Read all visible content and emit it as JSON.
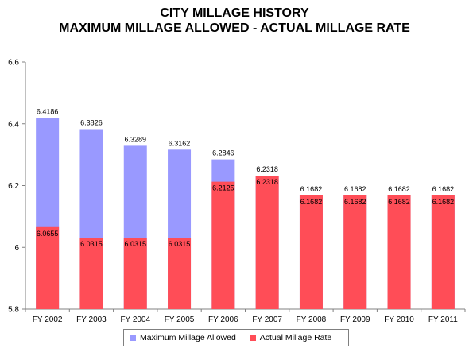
{
  "chart_data": {
    "type": "bar",
    "title": "CITY MILLAGE HISTORY",
    "subtitle": "MAXIMUM MILLAGE ALLOWED - ACTUAL MILLAGE RATE",
    "categories": [
      "FY 2002",
      "FY 2003",
      "FY 2004",
      "FY 2005",
      "FY 2006",
      "FY 2007",
      "FY 2008",
      "FY 2009",
      "FY 2010",
      "FY 2011"
    ],
    "series": [
      {
        "name": "Maximum Millage Allowed",
        "color": "#9999ff",
        "values": [
          6.4186,
          6.3826,
          6.3289,
          6.3162,
          6.2846,
          6.2318,
          6.1682,
          6.1682,
          6.1682,
          6.1682
        ],
        "labels": [
          "6.4186",
          "6.3826",
          "6.3289",
          "6.3162",
          "6.2846",
          "6.2318",
          "6.1682",
          "6.1682",
          "6.1682",
          "6.1682"
        ]
      },
      {
        "name": "Actual Millage Rate",
        "color": "#ff4d57",
        "values": [
          6.0655,
          6.0315,
          6.0315,
          6.0315,
          6.2125,
          6.2318,
          6.1682,
          6.1682,
          6.1682,
          6.1682
        ],
        "labels": [
          "6.0655",
          "6.0315",
          "6.0315",
          "6.0315",
          "6.2125",
          "6.2318",
          "6.1682",
          "6.1682",
          "6.1682",
          "6.1682"
        ]
      }
    ],
    "xlabel": "",
    "ylabel": "",
    "ylim": [
      5.8,
      6.6
    ],
    "yticks": [
      "5.8",
      "6",
      "6.2",
      "6.4",
      "6.6"
    ],
    "yticks_values": [
      5.8,
      6.0,
      6.2,
      6.4,
      6.6
    ],
    "grid": false,
    "legend_position": "bottom",
    "overlapping_bars": true
  }
}
